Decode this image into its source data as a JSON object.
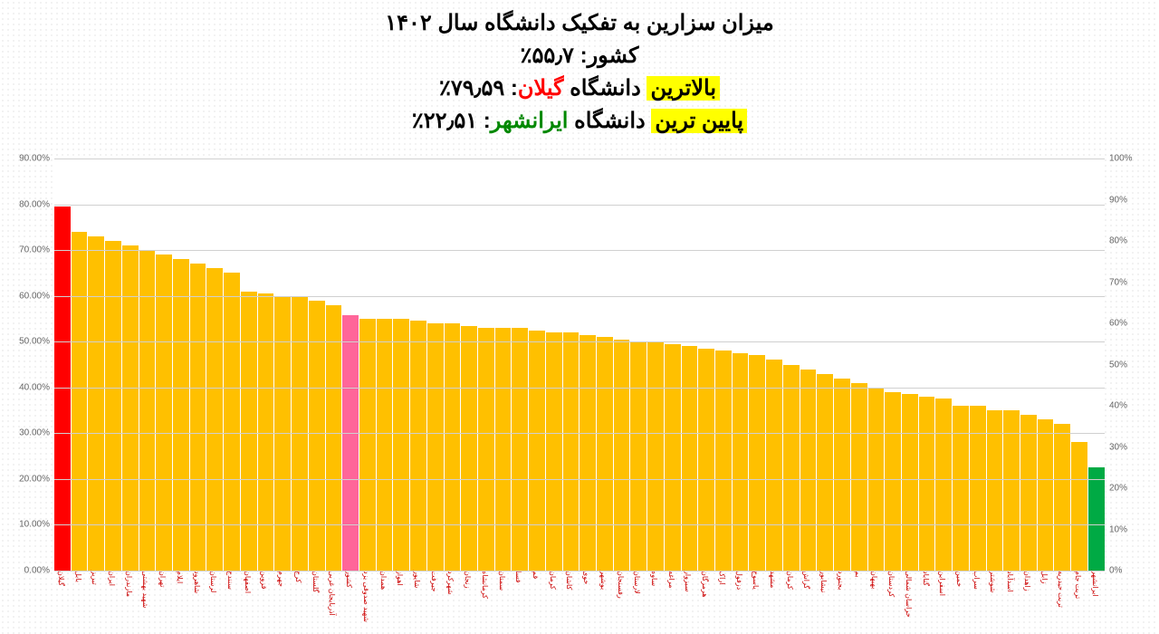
{
  "title": {
    "line1": "میزان سزارین به تفکیک دانشگاه سال ۱۴۰۲",
    "line2_label": "کشور:",
    "line2_value": "۵۵٫۷٪",
    "line3_highlight": "بالاترین",
    "line3_text": " دانشگاه ",
    "line3_uni": "گیلان",
    "line3_value": ": ۷۹٫۵۹٪",
    "line4_highlight": "پایین ترین",
    "line4_text": " دانشگاه ",
    "line4_uni": "ایرانشهر",
    "line4_value": ": ۲۲٫۵۱٪"
  },
  "chart": {
    "type": "bar",
    "ylim_left": [
      0,
      90
    ],
    "ytick_step_left": 10,
    "ylim_right": [
      0,
      100
    ],
    "ytick_step_right": 10,
    "background_color": "#ffffff",
    "grid_color": "#d0d0d0",
    "default_bar_color": "#ffc000",
    "label_color": "#cc0000",
    "y_label_format": "{v}.00%",
    "y_label_right_format": "{v}%",
    "label_fontsize": 10,
    "x_label_fontsize": 8,
    "bars": [
      {
        "label": "گیلان",
        "value": 79.59,
        "color": "#ff0000"
      },
      {
        "label": "بابل",
        "value": 74
      },
      {
        "label": "تبریز",
        "value": 73
      },
      {
        "label": "ایران",
        "value": 72
      },
      {
        "label": "مازندران",
        "value": 71
      },
      {
        "label": "شهید بهشتی",
        "value": 70
      },
      {
        "label": "تهران",
        "value": 69
      },
      {
        "label": "ایلام",
        "value": 68
      },
      {
        "label": "شاهرود",
        "value": 67
      },
      {
        "label": "لرستان",
        "value": 66
      },
      {
        "label": "سنندج",
        "value": 65
      },
      {
        "label": "اصفهان",
        "value": 61
      },
      {
        "label": "قزوین",
        "value": 60.5
      },
      {
        "label": "جهرم",
        "value": 60
      },
      {
        "label": "کرج",
        "value": 60
      },
      {
        "label": "گلستان",
        "value": 59
      },
      {
        "label": "آذربایجان غربی",
        "value": 58
      },
      {
        "label": "کشور",
        "value": 55.7,
        "color": "#ff6699"
      },
      {
        "label": "شهید صدوقی یزد",
        "value": 55
      },
      {
        "label": "همدان",
        "value": 55
      },
      {
        "label": "اهواز",
        "value": 55
      },
      {
        "label": "شاپور",
        "value": 54.5
      },
      {
        "label": "جیرفت",
        "value": 54
      },
      {
        "label": "شهرکرد",
        "value": 54
      },
      {
        "label": "زنجان",
        "value": 53.5
      },
      {
        "label": "کرمانشاه",
        "value": 53
      },
      {
        "label": "سمنان",
        "value": 53
      },
      {
        "label": "فسا",
        "value": 53
      },
      {
        "label": "قم",
        "value": 52.5
      },
      {
        "label": "کرمان",
        "value": 52
      },
      {
        "label": "کاشان",
        "value": 52
      },
      {
        "label": "خوی",
        "value": 51.5
      },
      {
        "label": "بوشهر",
        "value": 51
      },
      {
        "label": "رفسنجان",
        "value": 50.5
      },
      {
        "label": "لارستان",
        "value": 50
      },
      {
        "label": "ساوه",
        "value": 50
      },
      {
        "label": "مراغه",
        "value": 49.5
      },
      {
        "label": "سبزوار",
        "value": 49
      },
      {
        "label": "هرمزگان",
        "value": 48.5
      },
      {
        "label": "اراک",
        "value": 48
      },
      {
        "label": "دزفول",
        "value": 47.5
      },
      {
        "label": "یاسوج",
        "value": 47
      },
      {
        "label": "مشهد",
        "value": 46
      },
      {
        "label": "کرمان",
        "value": 45
      },
      {
        "label": "گراش",
        "value": 44
      },
      {
        "label": "نیشابور",
        "value": 43
      },
      {
        "label": "بجنورد",
        "value": 42
      },
      {
        "label": "بم",
        "value": 41
      },
      {
        "label": "بهبهان",
        "value": 40
      },
      {
        "label": "کردستان",
        "value": 39
      },
      {
        "label": "خراسان شمالی",
        "value": 38.5
      },
      {
        "label": "گناباد",
        "value": 38
      },
      {
        "label": "اسفراین",
        "value": 37.5
      },
      {
        "label": "خمین",
        "value": 36
      },
      {
        "label": "سراب",
        "value": 36
      },
      {
        "label": "شوشتر",
        "value": 35
      },
      {
        "label": "اسدآباد",
        "value": 35
      },
      {
        "label": "زاهدان",
        "value": 34
      },
      {
        "label": "زابل",
        "value": 33
      },
      {
        "label": "تربت حیدریه",
        "value": 32
      },
      {
        "label": "تربت جام",
        "value": 28
      },
      {
        "label": "ایرانشهر",
        "value": 22.51,
        "color": "#00aa44"
      }
    ]
  }
}
